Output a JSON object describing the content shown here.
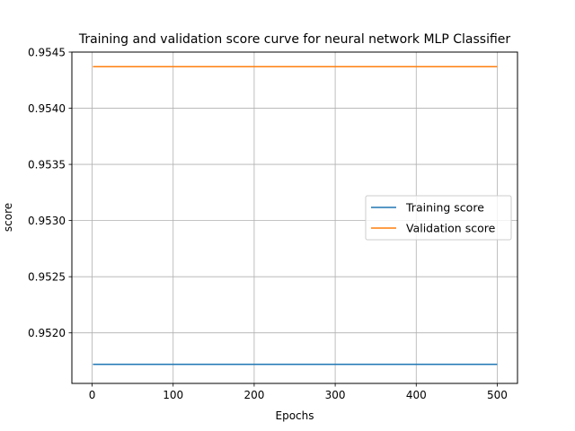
{
  "chart_data": {
    "type": "line",
    "title": "Training and validation score curve for neural network MLP Classifier",
    "xlabel": "Epochs",
    "ylabel": "score",
    "xlim": [
      -25,
      525
    ],
    "ylim": [
      0.95155,
      0.9545
    ],
    "xticks": [
      0,
      100,
      200,
      300,
      400,
      500
    ],
    "xtick_labels": [
      "0",
      "100",
      "200",
      "300",
      "400",
      "500"
    ],
    "yticks": [
      0.952,
      0.9525,
      0.953,
      0.9535,
      0.954,
      0.9545
    ],
    "ytick_labels": [
      "0.9520",
      "0.9525",
      "0.9530",
      "0.9535",
      "0.9540",
      "0.9545"
    ],
    "grid": true,
    "legend_position": "center-right",
    "series": [
      {
        "name": "Training score",
        "color": "#1f77b4",
        "x": [
          1,
          500
        ],
        "y": [
          0.95172,
          0.95172
        ]
      },
      {
        "name": "Validation score",
        "color": "#ff7f0e",
        "x": [
          1,
          500
        ],
        "y": [
          0.95437,
          0.95437
        ]
      }
    ]
  }
}
